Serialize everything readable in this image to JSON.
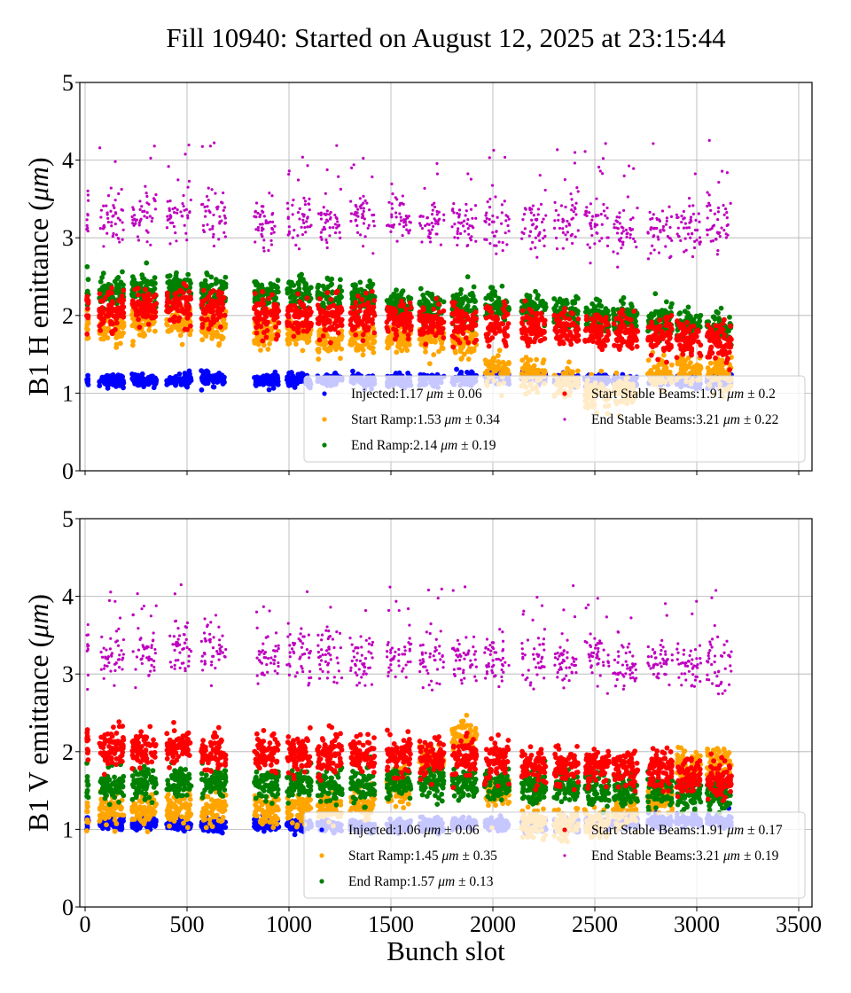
{
  "chart_data": [
    {
      "type": "scatter",
      "title": "Fill 10940: Started on August 12, 2025 at 23:15:44",
      "panel": "top",
      "ylabel": "B1 H emittance (μm)",
      "xlabel": "",
      "xlim": [
        -20,
        3560
      ],
      "ylim": [
        0,
        5
      ],
      "xticks": [
        0,
        500,
        1000,
        1500,
        2000,
        2500,
        3000,
        3500
      ],
      "xtick_labels_visible": false,
      "yticks": [
        0,
        1,
        2,
        3,
        4,
        5
      ],
      "ytick_labels": [
        "0",
        "1",
        "2",
        "3",
        "4",
        "5"
      ],
      "grid": true,
      "legend_location": "lower-right",
      "legend_columns": 2,
      "series": [
        {
          "name": "Injected",
          "label": "Injected:1.17",
          "mean": 1.17,
          "std": 0.06,
          "color": "#0000ff",
          "marker_size": "large"
        },
        {
          "name": "Start Ramp",
          "label": "Start Ramp:1.53",
          "mean": 1.53,
          "std": 0.34,
          "color": "#ffa500",
          "marker_size": "large"
        },
        {
          "name": "End Ramp",
          "label": "End Ramp:2.14",
          "mean": 2.14,
          "std": 0.19,
          "color": "#008000",
          "marker_size": "large"
        },
        {
          "name": "Start Stable Beams",
          "label": "Start Stable Beams:1.91",
          "mean": 1.91,
          "std": 0.2,
          "color": "#ff0000",
          "marker_size": "large"
        },
        {
          "name": "End Stable Beams",
          "label": "End Stable Beams:3.21",
          "mean": 3.21,
          "std": 0.22,
          "color": "#bf00bf",
          "marker_size": "small"
        }
      ],
      "legend_suffix": {
        "unit": "μm",
        "pm": "±"
      },
      "legend_std_labels": [
        "0.06",
        "0.34",
        "0.19",
        "0.2",
        "0.22"
      ],
      "trains": {
        "starts": [
          70,
          230,
          400,
          570,
          830,
          990,
          1140,
          1300,
          1480,
          1640,
          1800,
          1960,
          2140,
          2300,
          2450,
          2590,
          2760,
          2900,
          3050
        ],
        "length": 120,
        "profile": {
          "injected": [
            1.16,
            1.16,
            1.17,
            1.18,
            1.16,
            1.17,
            1.17,
            1.16,
            1.16,
            1.17,
            1.18,
            1.2,
            1.22,
            1.18,
            1.16,
            1.15,
            1.17,
            1.16,
            1.15
          ],
          "start_ramp": [
            1.85,
            1.95,
            1.92,
            1.85,
            1.8,
            1.75,
            1.68,
            1.7,
            1.7,
            1.68,
            1.65,
            1.3,
            1.25,
            1.15,
            1.0,
            1.05,
            1.25,
            1.3,
            1.25
          ],
          "end_ramp": [
            2.3,
            2.32,
            2.35,
            2.32,
            2.28,
            2.28,
            2.25,
            2.22,
            2.15,
            2.12,
            2.12,
            2.12,
            2.1,
            2.05,
            2.0,
            1.98,
            1.95,
            1.88,
            1.85
          ],
          "start_stable": [
            2.05,
            2.1,
            2.1,
            2.08,
            2.0,
            2.0,
            1.98,
            1.98,
            1.95,
            1.92,
            1.9,
            1.88,
            1.85,
            1.82,
            1.78,
            1.8,
            1.75,
            1.7,
            1.65
          ],
          "end_stable": [
            3.25,
            3.25,
            3.3,
            3.3,
            3.15,
            3.2,
            3.2,
            3.25,
            3.25,
            3.2,
            3.15,
            3.2,
            3.15,
            3.2,
            3.15,
            3.05,
            3.1,
            3.15,
            3.15
          ]
        }
      }
    },
    {
      "type": "scatter",
      "panel": "bottom",
      "ylabel": "B1 V emittance (μm)",
      "xlabel": "Bunch slot",
      "xlim": [
        -20,
        3560
      ],
      "ylim": [
        0,
        5
      ],
      "xticks": [
        0,
        500,
        1000,
        1500,
        2000,
        2500,
        3000,
        3500
      ],
      "xtick_labels": [
        "0",
        "500",
        "1000",
        "1500",
        "2000",
        "2500",
        "3000",
        "3500"
      ],
      "yticks": [
        0,
        1,
        2,
        3,
        4,
        5
      ],
      "ytick_labels": [
        "0",
        "1",
        "2",
        "3",
        "4",
        "5"
      ],
      "grid": true,
      "legend_location": "lower-right",
      "legend_columns": 2,
      "series": [
        {
          "name": "Injected",
          "label": "Injected:1.06",
          "mean": 1.06,
          "std": 0.06,
          "color": "#0000ff",
          "marker_size": "large"
        },
        {
          "name": "Start Ramp",
          "label": "Start Ramp:1.45",
          "mean": 1.45,
          "std": 0.35,
          "color": "#ffa500",
          "marker_size": "large"
        },
        {
          "name": "End Ramp",
          "label": "End Ramp:1.57",
          "mean": 1.57,
          "std": 0.13,
          "color": "#008000",
          "marker_size": "large"
        },
        {
          "name": "Start Stable Beams",
          "label": "Start Stable Beams:1.91",
          "mean": 1.91,
          "std": 0.17,
          "color": "#ff0000",
          "marker_size": "large"
        },
        {
          "name": "End Stable Beams",
          "label": "End Stable Beams:3.21",
          "mean": 3.21,
          "std": 0.19,
          "color": "#bf00bf",
          "marker_size": "small"
        }
      ],
      "legend_suffix": {
        "unit": "μm",
        "pm": "±"
      },
      "legend_std_labels": [
        "0.06",
        "0.35",
        "0.13",
        "0.17",
        "0.19"
      ],
      "trains": {
        "starts": [
          70,
          230,
          400,
          570,
          830,
          990,
          1140,
          1300,
          1480,
          1640,
          1800,
          1960,
          2140,
          2300,
          2450,
          2590,
          2760,
          2900,
          3050
        ],
        "length": 120,
        "profile": {
          "injected": [
            1.08,
            1.08,
            1.06,
            1.05,
            1.06,
            1.05,
            1.05,
            1.04,
            1.04,
            1.05,
            1.08,
            1.06,
            1.05,
            1.05,
            1.06,
            1.08,
            1.1,
            1.1,
            1.1
          ],
          "start_ramp": [
            1.25,
            1.25,
            1.25,
            1.25,
            1.25,
            1.28,
            1.3,
            1.35,
            1.55,
            1.9,
            2.2,
            1.5,
            1.1,
            1.05,
            1.1,
            1.2,
            1.4,
            1.85,
            1.85
          ],
          "end_ramp": [
            1.55,
            1.6,
            1.6,
            1.6,
            1.6,
            1.58,
            1.56,
            1.55,
            1.6,
            1.62,
            1.6,
            1.58,
            1.55,
            1.55,
            1.52,
            1.5,
            1.5,
            1.45,
            1.45
          ],
          "start_stable": [
            2.05,
            2.05,
            2.05,
            2.0,
            2.0,
            1.98,
            1.95,
            1.95,
            1.95,
            1.92,
            1.9,
            1.88,
            1.82,
            1.8,
            1.8,
            1.78,
            1.75,
            1.7,
            1.65
          ],
          "end_stable": [
            3.25,
            3.25,
            3.3,
            3.3,
            3.2,
            3.25,
            3.25,
            3.2,
            3.2,
            3.2,
            3.2,
            3.15,
            3.15,
            3.15,
            3.2,
            3.1,
            3.15,
            3.1,
            3.15
          ]
        }
      }
    }
  ]
}
